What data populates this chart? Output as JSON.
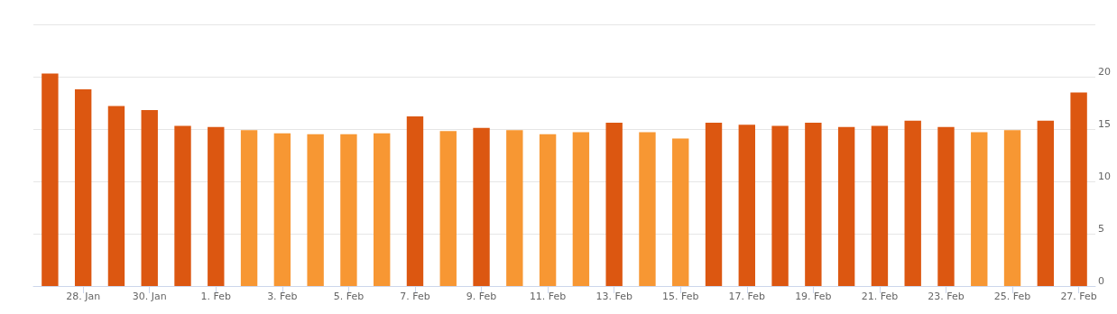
{
  "chart_data": {
    "type": "bar",
    "categories": [
      null,
      "28. Jan",
      null,
      "30. Jan",
      null,
      "1. Feb",
      null,
      "3. Feb",
      null,
      "5. Feb",
      null,
      "7. Feb",
      null,
      "9. Feb",
      null,
      "11. Feb",
      null,
      "13. Feb",
      null,
      "15. Feb",
      null,
      "17. Feb",
      null,
      "19. Feb",
      null,
      "21. Feb",
      null,
      "23. Feb",
      null,
      "25. Feb",
      null,
      "27. Feb"
    ],
    "values": [
      20.3,
      18.8,
      17.2,
      16.8,
      15.3,
      15.2,
      14.9,
      14.6,
      14.5,
      14.5,
      14.6,
      16.2,
      14.8,
      15.1,
      14.9,
      14.5,
      14.7,
      15.6,
      14.7,
      14.1,
      15.6,
      15.4,
      15.3,
      15.6,
      15.2,
      15.3,
      15.8,
      15.2,
      14.7,
      14.9,
      15.8,
      18.5
    ],
    "colors": [
      "#dc5711",
      "#dc5711",
      "#dc5711",
      "#dc5711",
      "#dc5711",
      "#dc5711",
      "#f79733",
      "#f79733",
      "#f79733",
      "#f79733",
      "#f79733",
      "#dc5711",
      "#f79733",
      "#dc5711",
      "#f79733",
      "#f79733",
      "#f79733",
      "#dc5711",
      "#f79733",
      "#f79733",
      "#dc5711",
      "#dc5711",
      "#dc5711",
      "#dc5711",
      "#dc5711",
      "#dc5711",
      "#dc5711",
      "#dc5711",
      "#f79733",
      "#f79733",
      "#dc5711",
      "#dc5711"
    ],
    "ylim": [
      0,
      25
    ],
    "yticks": [
      0,
      5,
      10,
      15,
      20,
      {
        "value": 25,
        "label": null
      }
    ],
    "grid": "y"
  }
}
